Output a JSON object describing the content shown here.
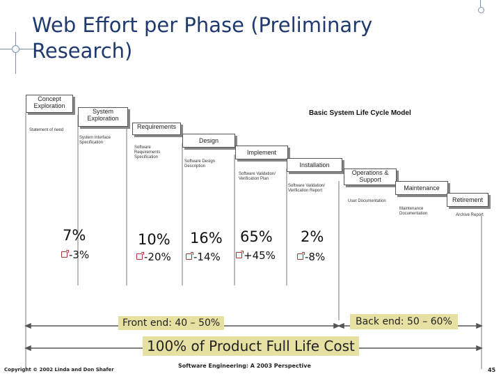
{
  "slide": {
    "title": "Web Effort per Phase (Preliminary Research)",
    "footer_left": "Copyright © 2002 Linda and Don Shafer",
    "footer_center": "Software Engineering: A 2003 Perspective",
    "page_number": "45"
  },
  "diagram": {
    "model_title": "Basic System Life Cycle Model",
    "phases": [
      "Concept Exploration",
      "System Exploration",
      "Requirements",
      "Design",
      "Implement",
      "Installation",
      "Operations & Support",
      "Maintenance",
      "Retirement"
    ],
    "deliverables": [
      "Statement of need",
      "System Interface Specification",
      "Software Requirements Specification",
      "Software Design Description",
      "Software Validation/ Verification Plan",
      "Software Validation/ Verification Report",
      "User Documentation",
      "Maintenance Documentation",
      "Archive Report"
    ],
    "percents": [
      "7%",
      "10%",
      "16%",
      "65%",
      "2%"
    ],
    "variances": [
      "-3%",
      "-20%",
      "-14%",
      "+45%",
      "-8%"
    ],
    "front_end": "Front end: 40 – 50%",
    "back_end": "Back end: 50 – 60%",
    "full_life": "100% of Product Full Life Cost"
  }
}
